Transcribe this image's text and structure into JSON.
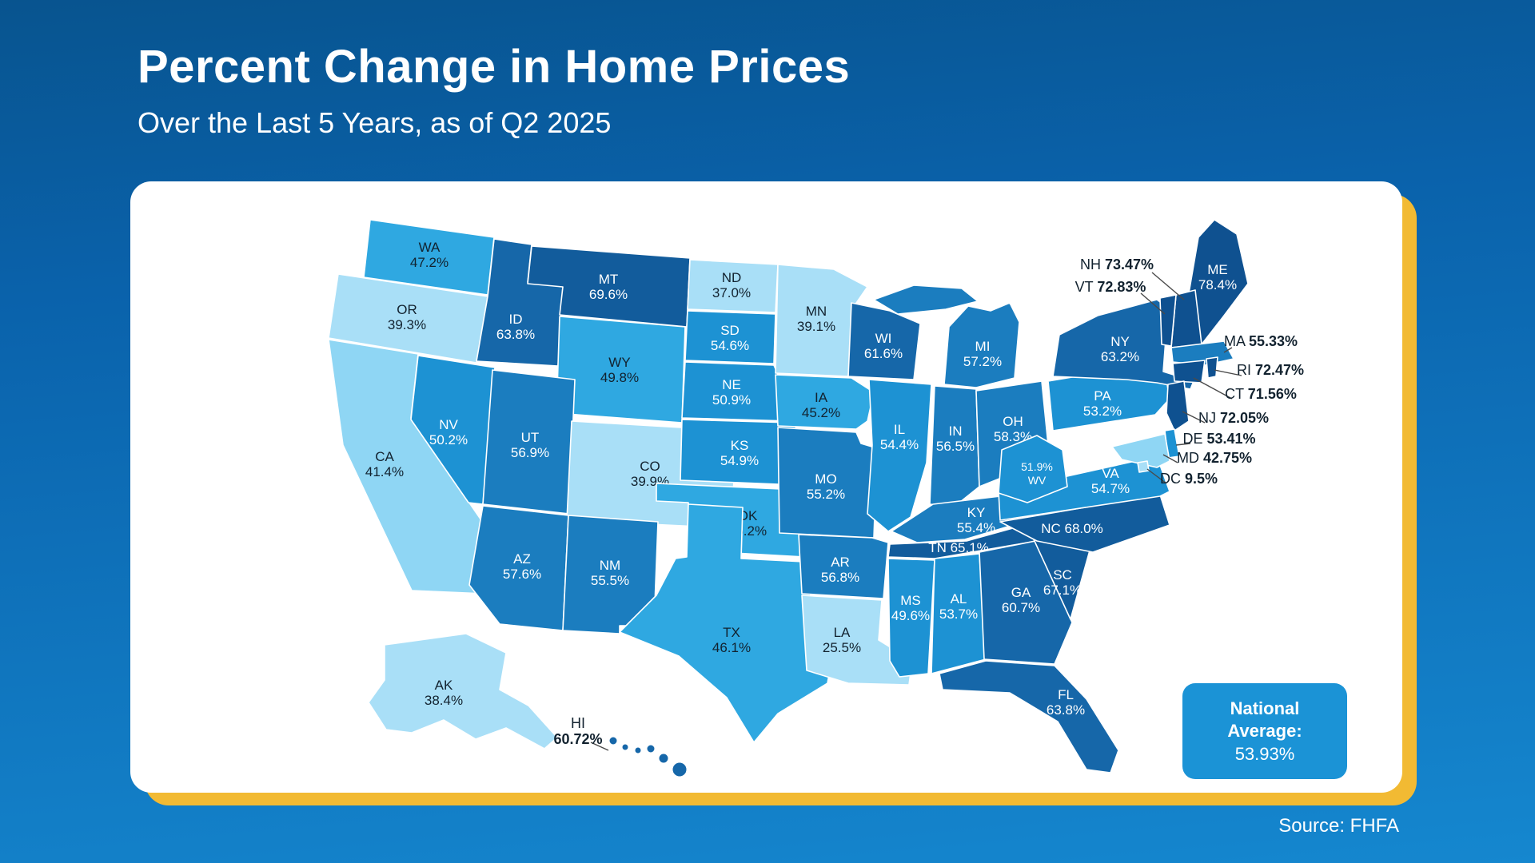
{
  "header": {
    "title": "Percent Change in Home Prices",
    "subtitle": "Over the Last 5 Years, as of Q2 2025"
  },
  "footer": {
    "source": "Source: FHFA"
  },
  "national_average": {
    "label": "National Average:",
    "value": "53.93%"
  },
  "colors": {
    "background_top": "#0a5fa8",
    "background_bottom": "#1b8ad2",
    "card": "#ffffff",
    "card_accent": "#f2ba33",
    "badge": "#1b93d6",
    "label_dark": "#12222f",
    "leader_line": "#4a4a4a",
    "palette": [
      {
        "max": 40,
        "fill": "#a9dff7",
        "text": "#12222f"
      },
      {
        "max": 45,
        "fill": "#8fd6f4",
        "text": "#12222f"
      },
      {
        "max": 50,
        "fill": "#2fa8e1",
        "text": "#12222f"
      },
      {
        "max": 55,
        "fill": "#1d92d3",
        "text": "#ffffff"
      },
      {
        "max": 60,
        "fill": "#1b7dbf",
        "text": "#ffffff"
      },
      {
        "max": 65,
        "fill": "#1667a9",
        "text": "#ffffff"
      },
      {
        "max": 70,
        "fill": "#125c9c",
        "text": "#ffffff"
      },
      {
        "max": 101,
        "fill": "#0f5190",
        "text": "#ffffff"
      }
    ]
  },
  "chart_data": {
    "type": "choropleth_map",
    "title": "Percent Change in Home Prices",
    "subtitle": "Over the Last 5 Years, as of Q2 2025",
    "unit": "%",
    "national_average": 53.93,
    "source": "FHFA",
    "states": [
      {
        "abbr": "WA",
        "value": 47.2,
        "display": "47.2%"
      },
      {
        "abbr": "OR",
        "value": 39.3,
        "display": "39.3%"
      },
      {
        "abbr": "CA",
        "value": 41.4,
        "display": "41.4%"
      },
      {
        "abbr": "NV",
        "value": 50.2,
        "display": "50.2%"
      },
      {
        "abbr": "ID",
        "value": 63.8,
        "display": "63.8%"
      },
      {
        "abbr": "MT",
        "value": 69.6,
        "display": "69.6%"
      },
      {
        "abbr": "WY",
        "value": 49.8,
        "display": "49.8%"
      },
      {
        "abbr": "UT",
        "value": 56.9,
        "display": "56.9%"
      },
      {
        "abbr": "CO",
        "value": 39.9,
        "display": "39.9%"
      },
      {
        "abbr": "AZ",
        "value": 57.6,
        "display": "57.6%"
      },
      {
        "abbr": "NM",
        "value": 55.5,
        "display": "55.5%"
      },
      {
        "abbr": "ND",
        "value": 37.0,
        "display": "37.0%"
      },
      {
        "abbr": "SD",
        "value": 54.6,
        "display": "54.6%"
      },
      {
        "abbr": "NE",
        "value": 50.9,
        "display": "50.9%"
      },
      {
        "abbr": "KS",
        "value": 54.9,
        "display": "54.9%"
      },
      {
        "abbr": "OK",
        "value": 46.2,
        "display": "46.2%"
      },
      {
        "abbr": "TX",
        "value": 46.1,
        "display": "46.1%"
      },
      {
        "abbr": "MN",
        "value": 39.1,
        "display": "39.1%"
      },
      {
        "abbr": "IA",
        "value": 45.2,
        "display": "45.2%"
      },
      {
        "abbr": "MO",
        "value": 55.2,
        "display": "55.2%"
      },
      {
        "abbr": "AR",
        "value": 56.8,
        "display": "56.8%"
      },
      {
        "abbr": "LA",
        "value": 25.5,
        "display": "25.5%"
      },
      {
        "abbr": "WI",
        "value": 61.6,
        "display": "61.6%"
      },
      {
        "abbr": "IL",
        "value": 54.4,
        "display": "54.4%"
      },
      {
        "abbr": "IN",
        "value": 56.5,
        "display": "56.5%"
      },
      {
        "abbr": "MI",
        "value": 57.2,
        "display": "57.2%"
      },
      {
        "abbr": "OH",
        "value": 58.3,
        "display": "58.3%"
      },
      {
        "abbr": "KY",
        "value": 55.4,
        "display": "55.4%"
      },
      {
        "abbr": "TN",
        "value": 65.1,
        "display": "65.1%"
      },
      {
        "abbr": "MS",
        "value": 49.6,
        "display": "49.6%"
      },
      {
        "abbr": "AL",
        "value": 53.7,
        "display": "53.7%"
      },
      {
        "abbr": "GA",
        "value": 60.7,
        "display": "60.7%"
      },
      {
        "abbr": "FL",
        "value": 63.8,
        "display": "63.8%"
      },
      {
        "abbr": "SC",
        "value": 67.1,
        "display": "67.1%"
      },
      {
        "abbr": "NC",
        "value": 68.0,
        "display": "68.0%"
      },
      {
        "abbr": "VA",
        "value": 54.7,
        "display": "54.7%"
      },
      {
        "abbr": "WV",
        "value": 51.9,
        "display": "51.9%"
      },
      {
        "abbr": "PA",
        "value": 53.2,
        "display": "53.2%"
      },
      {
        "abbr": "NY",
        "value": 63.2,
        "display": "63.2%"
      },
      {
        "abbr": "ME",
        "value": 78.4,
        "display": "78.4%"
      },
      {
        "abbr": "NH",
        "value": 73.47,
        "display": "73.47%"
      },
      {
        "abbr": "VT",
        "value": 72.83,
        "display": "72.83%"
      },
      {
        "abbr": "MA",
        "value": 55.33,
        "display": "55.33%"
      },
      {
        "abbr": "RI",
        "value": 72.47,
        "display": "72.47%"
      },
      {
        "abbr": "CT",
        "value": 71.56,
        "display": "71.56%"
      },
      {
        "abbr": "NJ",
        "value": 72.05,
        "display": "72.05%"
      },
      {
        "abbr": "DE",
        "value": 53.41,
        "display": "53.41%"
      },
      {
        "abbr": "MD",
        "value": 42.75,
        "display": "42.75%"
      },
      {
        "abbr": "DC",
        "value": 9.5,
        "display": "9.5%"
      },
      {
        "abbr": "AK",
        "value": 38.4,
        "display": "38.4%"
      },
      {
        "abbr": "HI",
        "value": 60.72,
        "display": "60.72%"
      }
    ]
  }
}
